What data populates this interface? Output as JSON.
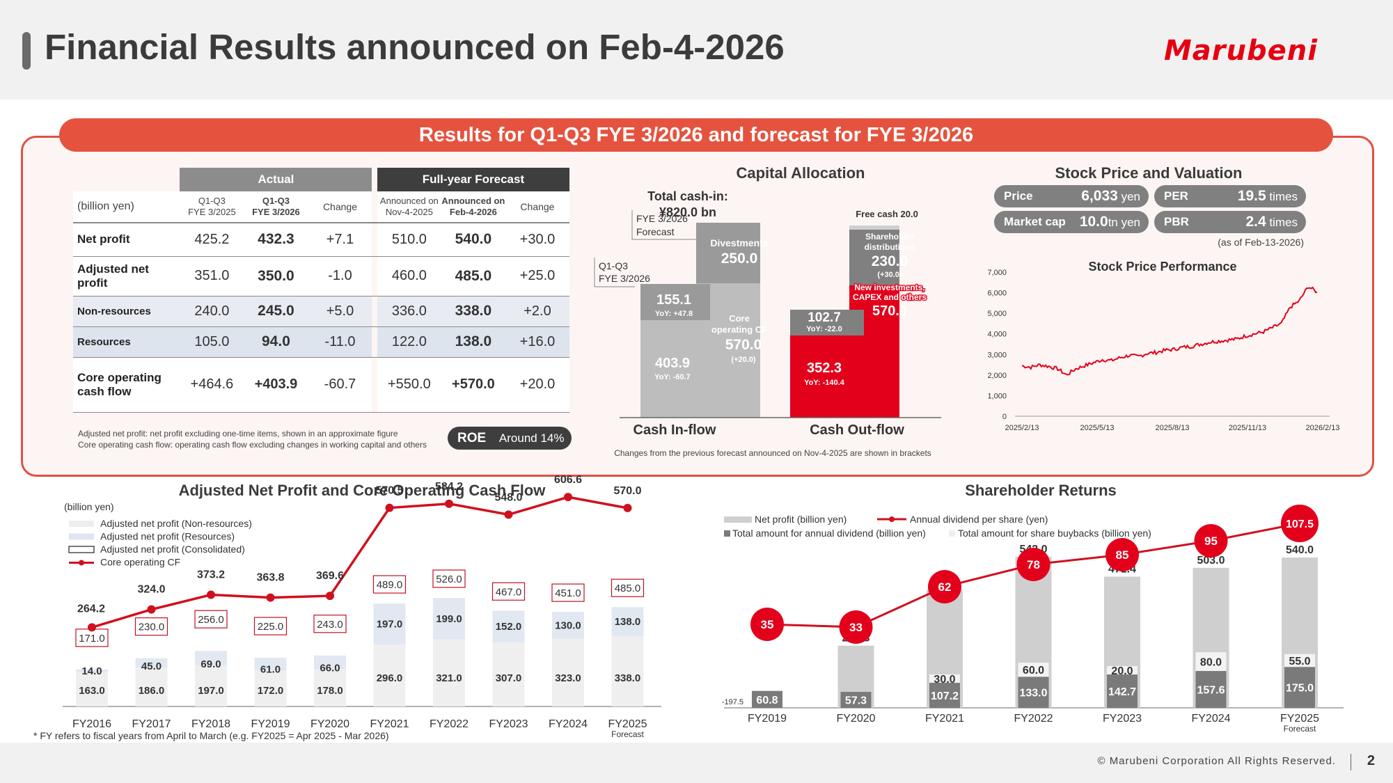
{
  "header": {
    "title": "Financial Results announced on Feb-4-2026",
    "logo": "Marubeni"
  },
  "banner": "Results for Q1-Q3 FYE 3/2026 and forecast for FYE 3/2026",
  "table": {
    "unit": "(billion yen)",
    "group_actual": "Actual",
    "group_forecast": "Full-year Forecast",
    "cols": [
      {
        "l1": "Q1-Q3",
        "l2": "FYE 3/2025"
      },
      {
        "l1": "Q1-Q3",
        "l2": "FYE 3/2026"
      },
      {
        "l1": "Change",
        "l2": ""
      },
      {
        "l1": "Announced on",
        "l2": "Nov-4-2025"
      },
      {
        "l1": "Announced on",
        "l2": "Feb-4-2026"
      },
      {
        "l1": "Change",
        "l2": ""
      }
    ],
    "rows": [
      {
        "label": "Net profit",
        "v": [
          "425.2",
          "432.3",
          "+7.1",
          "510.0",
          "540.0",
          "+30.0"
        ]
      },
      {
        "label": "Adjusted net profit",
        "v": [
          "351.0",
          "350.0",
          "-1.0",
          "460.0",
          "485.0",
          "+25.0"
        ]
      },
      {
        "label": "Non-resources",
        "v": [
          "240.0",
          "245.0",
          "+5.0",
          "336.0",
          "338.0",
          "+2.0"
        ]
      },
      {
        "label": "Resources",
        "v": [
          "105.0",
          "94.0",
          "-11.0",
          "122.0",
          "138.0",
          "+16.0"
        ]
      },
      {
        "label": "Core operating cash flow",
        "v": [
          "+464.6",
          "+403.9",
          "-60.7",
          "+550.0",
          "+570.0",
          "+20.0"
        ]
      }
    ],
    "notes": [
      "Adjusted net profit: net profit excluding one-time items, shown in an approximate figure",
      "Core operating cash flow: operating cash flow excluding changes in working capital and others"
    ],
    "roe_label": "ROE",
    "roe_value": "Around 14%"
  },
  "capital": {
    "title": "Capital Allocation",
    "total_l1": "Total cash-in:",
    "total_l2": "¥820.0 bn",
    "fye_forecast": "FYE 3/2026\nForecast",
    "q1q3": "Q1-Q3\nFYE 3/2026",
    "inflow_label": "Cash In-flow",
    "outflow_label": "Cash Out-flow",
    "q_core": "403.9",
    "q_core_yoy": "YoY: -60.7",
    "q_div": "155.1",
    "q_div_yoy": "YoY: +47.8",
    "f_div_label": "Divestments",
    "f_div": "250.0",
    "f_core_label": "Core operating CF",
    "f_core": "570.0",
    "f_core_chg": "(+20.0)",
    "q_inv": "352.3",
    "q_inv_yoy": "YoY: -140.4",
    "q_sh": "102.7",
    "q_sh_yoy": "YoY: -22.0",
    "f_inv_label": "New investments, CAPEX and others",
    "f_inv": "570.0",
    "f_sh_label": "Shareholder distributions",
    "f_sh": "230.0",
    "f_sh_chg": "(+30.0)",
    "free_cash": "Free cash 20.0",
    "note": "Changes from the previous forecast announced on Nov-4-2025 are shown in brackets"
  },
  "stock": {
    "title": "Stock Price and Valuation",
    "price_label": "Price",
    "price_value": "6,033",
    "price_unit": "yen",
    "per_label": "PER",
    "per_value": "19.5",
    "per_unit": "times",
    "mcap_label": "Market cap",
    "mcap_value": "10.0",
    "mcap_unit": "tn yen",
    "pbr_label": "PBR",
    "pbr_value": "2.4",
    "pbr_unit": "times",
    "asof": "(as of Feb-13-2026)",
    "chart_title": "Stock Price Performance"
  },
  "chart_data": [
    {
      "type": "line",
      "title": "Stock Price Performance",
      "x_ticks": [
        "2025/2/13",
        "2025/5/13",
        "2025/8/13",
        "2025/11/13",
        "2026/2/13"
      ],
      "y_ticks": [
        "0",
        "1,000",
        "2,000",
        "3,000",
        "4,000",
        "5,000",
        "6,000",
        "7,000"
      ],
      "ylim": [
        0,
        7000
      ],
      "series": [
        {
          "values": [
            2450,
            2380,
            2500,
            2420,
            2300,
            2000,
            2300,
            2450,
            2600,
            2750,
            2700,
            2850,
            2950,
            2900,
            3050,
            3100,
            3200,
            3250,
            3350,
            3400,
            3500,
            3600,
            3650,
            3700,
            3750,
            3900,
            4000,
            4100,
            4300,
            4500,
            5300,
            5600,
            6300,
            6033
          ]
        }
      ],
      "colors": {
        "line": "#e3001b"
      }
    },
    {
      "type": "bar",
      "title": "Adjusted Net Profit and Core Operating Cash Flow",
      "unit": "(billion yen)",
      "categories": [
        "FY2016",
        "FY2017",
        "FY2018",
        "FY2019",
        "FY2020",
        "FY2021",
        "FY2022",
        "FY2023",
        "FY2024",
        "FY2025"
      ],
      "forecast_label": "Forecast",
      "series": [
        {
          "name": "Adjusted net profit (Non-resources)",
          "values": [
            163.0,
            186.0,
            197.0,
            172.0,
            178.0,
            296.0,
            321.0,
            307.0,
            323.0,
            338.0
          ]
        },
        {
          "name": "Adjusted net profit (Resources)",
          "values": [
            14.0,
            45.0,
            69.0,
            61.0,
            66.0,
            197.0,
            199.0,
            152.0,
            130.0,
            138.0
          ]
        },
        {
          "name": "Adjusted net profit (Consolidated)",
          "values": [
            171.0,
            230.0,
            256.0,
            225.0,
            243.0,
            489.0,
            526.0,
            467.0,
            451.0,
            485.0
          ]
        },
        {
          "name": "Core operating CF",
          "values": [
            264.2,
            324.0,
            373.2,
            363.8,
            369.6,
            570.5,
            584.2,
            548.0,
            606.6,
            570.0
          ]
        }
      ],
      "footnote": "* FY refers to fiscal years from April to March (e.g. FY2025 = Apr 2025 - Mar 2026)"
    },
    {
      "type": "bar",
      "title": "Shareholder Returns",
      "categories": [
        "FY2019",
        "FY2020",
        "FY2021",
        "FY2022",
        "FY2023",
        "FY2024",
        "FY2025"
      ],
      "forecast_label": "Forecast",
      "series": [
        {
          "name": "Net profit (billion yen)",
          "values": [
            -197.5,
            223.3,
            424.3,
            543.0,
            471.4,
            503.0,
            540.0
          ]
        },
        {
          "name": "Total amount for annual dividend (billion yen)",
          "values": [
            60.8,
            57.3,
            107.2,
            133.0,
            142.7,
            157.6,
            175.0
          ]
        },
        {
          "name": "Total amount for share buybacks (billion yen)",
          "values": [
            null,
            null,
            30.0,
            60.0,
            20.0,
            80.0,
            55.0
          ]
        },
        {
          "name": "Annual dividend per share (yen)",
          "values": [
            35,
            33,
            62,
            78,
            85,
            95,
            107.5
          ]
        }
      ]
    }
  ],
  "footer": {
    "copyright": "© Marubeni Corporation All Rights Reserved.",
    "page": "2"
  }
}
